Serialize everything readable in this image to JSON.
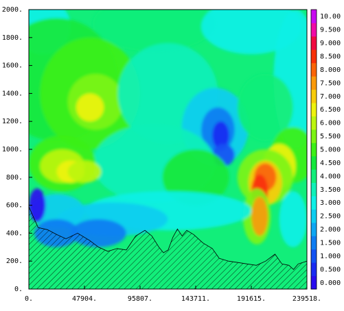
{
  "chart_data": {
    "type": "heatmap",
    "title": "",
    "xlabel": "",
    "ylabel": "",
    "xlim": [
      0,
      239518
    ],
    "ylim": [
      0,
      2000
    ],
    "x_ticks": [
      {
        "value": 0,
        "label": "0."
      },
      {
        "value": 47904,
        "label": "47904."
      },
      {
        "value": 95807,
        "label": "95807."
      },
      {
        "value": 143711,
        "label": "143711."
      },
      {
        "value": 191615,
        "label": "191615."
      },
      {
        "value": 239518,
        "label": "239518."
      }
    ],
    "y_ticks": [
      {
        "value": 0,
        "label": "0."
      },
      {
        "value": 200,
        "label": "200."
      },
      {
        "value": 400,
        "label": "400."
      },
      {
        "value": 600,
        "label": "600."
      },
      {
        "value": 800,
        "label": "800."
      },
      {
        "value": 1000,
        "label": "1000."
      },
      {
        "value": 1200,
        "label": "1200."
      },
      {
        "value": 1400,
        "label": "1400."
      },
      {
        "value": 1600,
        "label": "1600."
      },
      {
        "value": 1800,
        "label": "1800."
      },
      {
        "value": 2000,
        "label": "2000."
      }
    ],
    "colorbar": {
      "levels": [
        "0.000",
        "0.500",
        "1.000",
        "1.500",
        "2.000",
        "2.500",
        "3.000",
        "3.500",
        "4.000",
        "4.500",
        "5.000",
        "5.500",
        "6.000",
        "6.500",
        "7.000",
        "7.500",
        "8.000",
        "8.500",
        "9.000",
        "9.500",
        "10.00"
      ],
      "colors": [
        "#2a0df0",
        "#1a2cf2",
        "#1353f3",
        "#0f7df2",
        "#0ea6f2",
        "#0dcdf0",
        "#0ef0e6",
        "#10f0b8",
        "#12ee7a",
        "#14e83c",
        "#3cf018",
        "#7cf414",
        "#bcf510",
        "#eef20e",
        "#f8cc0c",
        "#fa9a0a",
        "#fa6408",
        "#f83008",
        "#f00a40",
        "#f00aa6",
        "#c80af0"
      ]
    },
    "terrain": [
      [
        0,
        590
      ],
      [
        8000,
        440
      ],
      [
        16000,
        425
      ],
      [
        24000,
        390
      ],
      [
        32000,
        360
      ],
      [
        42000,
        400
      ],
      [
        52000,
        350
      ],
      [
        60000,
        300
      ],
      [
        68000,
        270
      ],
      [
        76000,
        290
      ],
      [
        84000,
        280
      ],
      [
        92000,
        380
      ],
      [
        100000,
        420
      ],
      [
        106000,
        380
      ],
      [
        112000,
        300
      ],
      [
        116000,
        260
      ],
      [
        120000,
        280
      ],
      [
        124000,
        370
      ],
      [
        128000,
        430
      ],
      [
        132000,
        380
      ],
      [
        136000,
        420
      ],
      [
        142000,
        390
      ],
      [
        150000,
        330
      ],
      [
        158000,
        290
      ],
      [
        164000,
        220
      ],
      [
        172000,
        200
      ],
      [
        180000,
        190
      ],
      [
        188000,
        180
      ],
      [
        196000,
        170
      ],
      [
        204000,
        200
      ],
      [
        212000,
        250
      ],
      [
        218000,
        180
      ],
      [
        224000,
        170
      ],
      [
        228000,
        140
      ],
      [
        232000,
        180
      ],
      [
        239518,
        200
      ]
    ],
    "grid": false,
    "legend": "colorbar-right"
  }
}
